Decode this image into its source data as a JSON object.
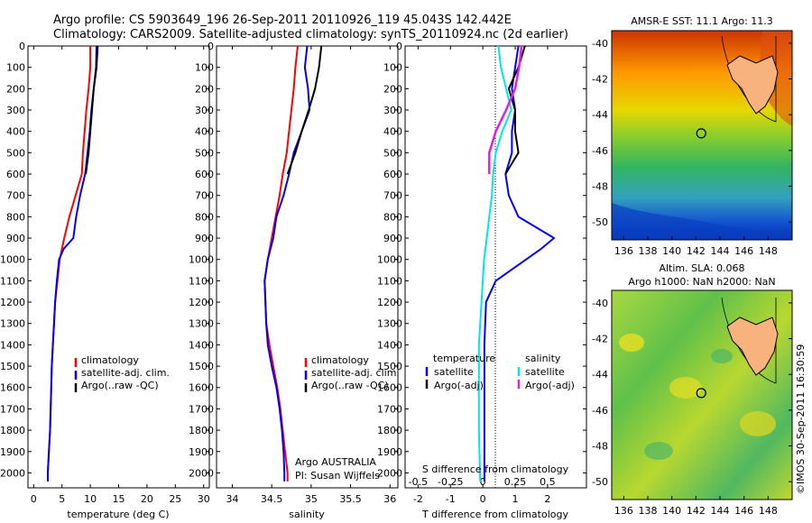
{
  "title_line1": "Argo profile: CS 5903649_196 26-Sep-2011 20110926_119 45.043S 142.442E",
  "title_line2": "Climatology: CARS2009. Satellite-adjusted climatology: synTS_20110924.nc (2d earlier)",
  "colors": {
    "clim": "#ff0000",
    "sat": "#0000ff",
    "argo": "#000000",
    "sat_s": "#00e5e5",
    "argo_s": "#e020e0"
  },
  "depth_ticks": [
    "0",
    "100",
    "200",
    "300",
    "400",
    "500",
    "600",
    "700",
    "800",
    "900",
    "1000",
    "1100",
    "1200",
    "1300",
    "1400",
    "1500",
    "1600",
    "1700",
    "1800",
    "1900",
    "2000"
  ],
  "chart_data": [
    {
      "type": "line",
      "xlabel": "temperature (deg C)",
      "ylabel": "",
      "xlim": [
        -1,
        31
      ],
      "ylim": [
        2070,
        0
      ],
      "y_reversed": true,
      "x_ticks": [
        "0",
        "5",
        "10",
        "15",
        "20",
        "25",
        "30"
      ],
      "legend": [
        "climatology",
        "satellite-adj. clim.",
        "Argo(..raw -QC)"
      ],
      "series": [
        {
          "name": "climatology",
          "color": "#ff0000",
          "points": [
            [
              10,
              0
            ],
            [
              10,
              100
            ],
            [
              9.7,
              200
            ],
            [
              9.3,
              300
            ],
            [
              9.0,
              400
            ],
            [
              8.7,
              500
            ],
            [
              8.5,
              600
            ],
            [
              7.4,
              700
            ],
            [
              6.3,
              800
            ],
            [
              5.4,
              900
            ],
            [
              4.6,
              1000
            ],
            [
              4.2,
              1100
            ],
            [
              3.8,
              1200
            ],
            [
              3.6,
              1300
            ],
            [
              3.4,
              1400
            ],
            [
              3.2,
              1500
            ],
            [
              3.1,
              1600
            ],
            [
              3.0,
              1700
            ],
            [
              2.9,
              1800
            ],
            [
              2.7,
              1900
            ],
            [
              2.5,
              2000
            ],
            [
              2.5,
              2040
            ]
          ]
        },
        {
          "name": "satellite-adj. clim.",
          "color": "#0000ff",
          "points": [
            [
              11.1,
              0
            ],
            [
              11.0,
              100
            ],
            [
              10.6,
              200
            ],
            [
              10.2,
              300
            ],
            [
              9.9,
              400
            ],
            [
              9.5,
              500
            ],
            [
              9.1,
              600
            ],
            [
              8.2,
              700
            ],
            [
              7.5,
              800
            ],
            [
              7.0,
              900
            ],
            [
              5.3,
              950
            ],
            [
              4.5,
              1000
            ],
            [
              4.1,
              1100
            ],
            [
              3.8,
              1200
            ],
            [
              3.6,
              1300
            ],
            [
              3.4,
              1400
            ],
            [
              3.2,
              1500
            ],
            [
              3.1,
              1600
            ],
            [
              2.9,
              1800
            ],
            [
              2.7,
              1900
            ],
            [
              2.5,
              2000
            ],
            [
              2.5,
              2040
            ]
          ]
        },
        {
          "name": "Argo(..raw -QC)",
          "color": "#000000",
          "points": [
            [
              11.3,
              0
            ],
            [
              11.1,
              100
            ],
            [
              10.6,
              200
            ],
            [
              10.3,
              300
            ],
            [
              10.0,
              400
            ],
            [
              9.7,
              500
            ],
            [
              9.2,
              600
            ]
          ]
        }
      ]
    },
    {
      "type": "line",
      "xlabel": "salinity",
      "ylabel": "",
      "xlim": [
        33.8,
        36.1
      ],
      "ylim": [
        2070,
        0
      ],
      "y_reversed": true,
      "x_ticks": [
        "34",
        "34.5",
        "35",
        "35.5",
        "36"
      ],
      "legend": [
        "climatology",
        "satellite-adj. clim.",
        "Argo(..raw -QC)"
      ],
      "annotations": [
        "Argo AUSTRALIA",
        "PI: Susan Wijffels"
      ],
      "series": [
        {
          "name": "climatology",
          "color": "#ff0000",
          "points": [
            [
              34.83,
              0
            ],
            [
              34.8,
              100
            ],
            [
              34.78,
              200
            ],
            [
              34.75,
              300
            ],
            [
              34.72,
              400
            ],
            [
              34.69,
              500
            ],
            [
              34.64,
              600
            ],
            [
              34.6,
              700
            ],
            [
              34.55,
              800
            ],
            [
              34.5,
              900
            ],
            [
              34.45,
              1000
            ],
            [
              34.41,
              1100
            ],
            [
              34.42,
              1200
            ],
            [
              34.43,
              1300
            ],
            [
              34.47,
              1400
            ],
            [
              34.52,
              1500
            ],
            [
              34.57,
              1600
            ],
            [
              34.61,
              1700
            ],
            [
              34.64,
              1800
            ],
            [
              34.67,
              1900
            ],
            [
              34.7,
              2000
            ],
            [
              34.7,
              2040
            ]
          ]
        },
        {
          "name": "satellite-adj. clim.",
          "color": "#0000ff",
          "points": [
            [
              34.95,
              0
            ],
            [
              34.92,
              100
            ],
            [
              34.96,
              200
            ],
            [
              34.98,
              300
            ],
            [
              34.88,
              400
            ],
            [
              34.78,
              500
            ],
            [
              34.72,
              600
            ],
            [
              34.65,
              700
            ],
            [
              34.56,
              800
            ],
            [
              34.52,
              900
            ],
            [
              34.45,
              1000
            ],
            [
              34.41,
              1100
            ],
            [
              34.42,
              1200
            ],
            [
              34.43,
              1300
            ],
            [
              34.45,
              1400
            ],
            [
              34.5,
              1500
            ],
            [
              34.56,
              1600
            ],
            [
              34.6,
              1700
            ],
            [
              34.63,
              1800
            ],
            [
              34.65,
              1900
            ],
            [
              34.66,
              2000
            ],
            [
              34.66,
              2040
            ]
          ]
        },
        {
          "name": "Argo(..raw -QC)",
          "color": "#000000",
          "points": [
            [
              35.13,
              0
            ],
            [
              35.1,
              100
            ],
            [
              35.05,
              200
            ],
            [
              34.97,
              300
            ],
            [
              34.88,
              400
            ],
            [
              34.8,
              500
            ],
            [
              34.7,
              600
            ]
          ]
        }
      ]
    },
    {
      "type": "line",
      "xlabel": "T difference from climatology",
      "xlabel_top": "S difference from climatology",
      "ylabel": "",
      "xlim": [
        -2.4,
        3.2
      ],
      "ylim": [
        2070,
        0
      ],
      "y_reversed": true,
      "x_ticks": [
        "-2",
        "-1",
        "0",
        "1",
        "2"
      ],
      "x_ticks_top": [
        "-0.5",
        "-0.25",
        "0",
        "0.25",
        "0.5"
      ],
      "legend_title_t": "temperature",
      "legend_title_s": "salinity",
      "legend": [
        "satellite",
        "Argo(-adj)",
        "satellite",
        "Argo(-adj)"
      ],
      "series": [
        {
          "name": "satellite",
          "quantity": "temperature",
          "color": "#0000ff",
          "points": [
            [
              1.1,
              0
            ],
            [
              1.0,
              100
            ],
            [
              0.9,
              200
            ],
            [
              1.0,
              300
            ],
            [
              0.9,
              400
            ],
            [
              0.9,
              500
            ],
            [
              0.7,
              600
            ],
            [
              0.8,
              700
            ],
            [
              1.1,
              800
            ],
            [
              2.2,
              900
            ],
            [
              1.8,
              950
            ],
            [
              0.4,
              1100
            ],
            [
              0.1,
              1200
            ],
            [
              0.05,
              1400
            ],
            [
              0.05,
              1600
            ],
            [
              0.05,
              1800
            ],
            [
              0.05,
              2040
            ]
          ]
        },
        {
          "name": "Argo(-adj)",
          "quantity": "temperature",
          "color": "#000000",
          "points": [
            [
              1.3,
              0
            ],
            [
              1.1,
              100
            ],
            [
              0.8,
              200
            ],
            [
              1.0,
              300
            ],
            [
              1.0,
              400
            ],
            [
              1.1,
              500
            ],
            [
              0.7,
              600
            ]
          ]
        },
        {
          "name": "satellite",
          "quantity": "salinity",
          "color": "#00e5e5",
          "points": [
            [
              0.12,
              0
            ],
            [
              0.14,
              100
            ],
            [
              0.18,
              200
            ],
            [
              0.22,
              300
            ],
            [
              0.15,
              400
            ],
            [
              0.1,
              500
            ],
            [
              0.08,
              600
            ],
            [
              0.07,
              700
            ],
            [
              0.05,
              800
            ],
            [
              0.03,
              900
            ],
            [
              0.01,
              1000
            ],
            [
              0,
              1100
            ],
            [
              -0.02,
              1300
            ],
            [
              -0.03,
              1400
            ],
            [
              -0.03,
              1600
            ],
            [
              -0.03,
              1800
            ],
            [
              -0.02,
              2040
            ]
          ]
        },
        {
          "name": "Argo(-adj)",
          "quantity": "salinity",
          "color": "#e020e0",
          "points": [
            [
              0.3,
              0
            ],
            [
              0.28,
              100
            ],
            [
              0.25,
              200
            ],
            [
              0.18,
              300
            ],
            [
              0.1,
              400
            ],
            [
              0.05,
              500
            ],
            [
              0.05,
              600
            ]
          ]
        }
      ]
    },
    {
      "type": "heatmap",
      "title": "AMSR-E SST: 11.1 Argo: 11.3",
      "xlim": [
        135,
        150
      ],
      "ylim": [
        -51,
        -39.3
      ],
      "x_ticks": [
        "136",
        "138",
        "140",
        "142",
        "144",
        "146",
        "148"
      ],
      "y_ticks": [
        "-40",
        "-42",
        "-44",
        "-46",
        "-48",
        "-50"
      ],
      "marker": [
        142.442,
        -45.043
      ]
    },
    {
      "type": "heatmap",
      "title_line1": "Altim. SLA: 0.068",
      "title_line2": "Argo h1000: NaN h2000: NaN",
      "xlim": [
        135,
        150
      ],
      "ylim": [
        -51,
        -39.3
      ],
      "x_ticks": [
        "136",
        "138",
        "140",
        "142",
        "144",
        "146",
        "148"
      ],
      "y_ticks": [
        "-40",
        "-42",
        "-44",
        "-46",
        "-48",
        "-50"
      ],
      "marker": [
        142.442,
        -45.043
      ]
    }
  ],
  "credit": "©IMOS 30-Sep-2011 16:30:59"
}
